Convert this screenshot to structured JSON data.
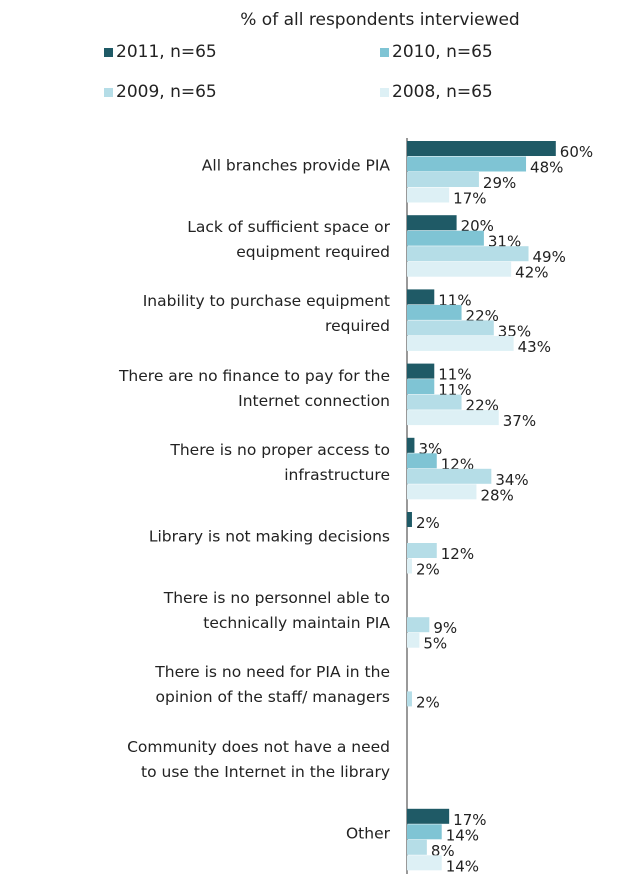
{
  "chart_data": {
    "type": "bar",
    "orientation": "horizontal",
    "legend_title": "% of all respondents interviewed",
    "categories": [
      "All branches provide PIA",
      "Lack of sufficient space or\nequipment required",
      "Inability to purchase equipment\nrequired",
      "There are no finance to pay for the\nInternet connection",
      "There is no proper access to\ninfrastructure",
      "Library is not making decisions",
      "There is no personnel able to\ntechnically maintain PIA",
      "There is no need for PIA in the\nopinion of the staff/ managers",
      "Community does not have a need\nto use the Internet in the library",
      "Other"
    ],
    "series": [
      {
        "name": "2011, n=65",
        "color": "#1f5a66",
        "values": [
          60,
          20,
          11,
          11,
          3,
          2,
          null,
          null,
          null,
          17
        ],
        "value_labels": [
          "60%",
          "20%",
          "11%",
          "11%",
          "3%",
          "2%",
          null,
          null,
          null,
          "17%"
        ]
      },
      {
        "name": "2010, n=65",
        "color": "#7fc4d4",
        "values": [
          48,
          31,
          22,
          11,
          12,
          null,
          null,
          null,
          null,
          14
        ],
        "value_labels": [
          "48%",
          "31%",
          "22%",
          "11%",
          "12%",
          null,
          null,
          null,
          null,
          "14%"
        ]
      },
      {
        "name": "2009, n=65",
        "color": "#b5dde7",
        "values": [
          29,
          49,
          35,
          22,
          34,
          12,
          9,
          2,
          null,
          8
        ],
        "value_labels": [
          "29%",
          "49%",
          "35%",
          "22%",
          "34%",
          "12%",
          "9%",
          "2%",
          null,
          "8%"
        ]
      },
      {
        "name": "2008, n=65",
        "color": "#ddf0f5",
        "values": [
          17,
          42,
          43,
          37,
          28,
          2,
          5,
          null,
          null,
          14
        ],
        "value_labels": [
          "17%",
          "42%",
          "43%",
          "37%",
          "28%",
          "2%",
          "5%",
          null,
          null,
          "14%"
        ]
      }
    ],
    "xlim": [
      0,
      100
    ]
  }
}
